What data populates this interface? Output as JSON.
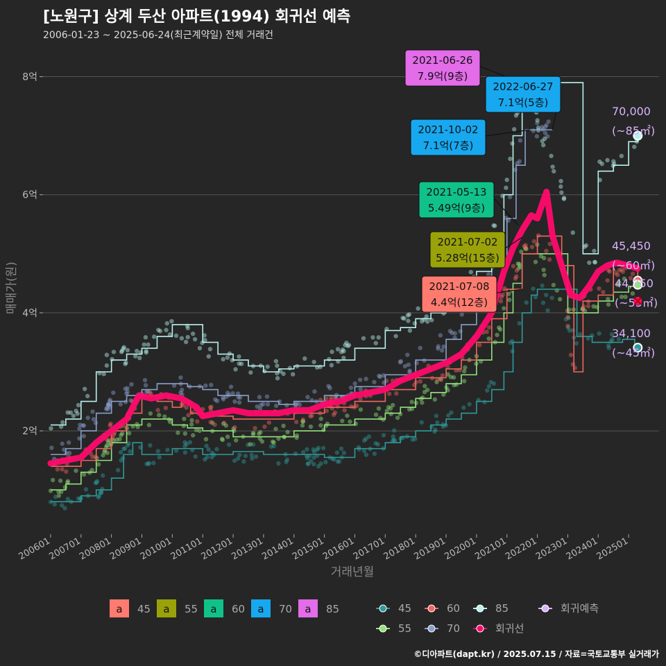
{
  "header": {
    "title": "[노원구] 상계 두산 아파트(1994) 회귀선 예측",
    "subtitle": "2006-01-23 ~ 2025-06-24(최근계약일) 전체 거래건",
    "credit": "©디아파트(dapt.kr) / 2025.07.15 / 자료=국토교통부 실거래가"
  },
  "colors": {
    "background": "#262626",
    "grid": "#555555",
    "s45": "#2f9a9a",
    "s55": "#93e27d",
    "s60": "#f1665f",
    "s70": "#8aa0cc",
    "s85": "#b8f2ee",
    "regression": "#ff0a6c",
    "forecast": "#d9b3ff"
  },
  "chart_data": {
    "type": "line",
    "title": "[노원구] 상계 두산 아파트(1994) 회귀선 예측",
    "xlabel": "거래년월",
    "ylabel": "매매가(원)",
    "ylim": [
      0.25,
      8.5
    ],
    "y_unit": "억",
    "y_ticks": [
      {
        "value": 2,
        "label": "2억"
      },
      {
        "value": 4,
        "label": "4억"
      },
      {
        "value": 6,
        "label": "6억"
      },
      {
        "value": 8,
        "label": "8억"
      }
    ],
    "xlim": [
      2005.75,
      2026.0
    ],
    "x_ticks": [
      {
        "value": 2006.0,
        "label": "200601"
      },
      {
        "value": 2007.0,
        "label": "200701"
      },
      {
        "value": 2008.0,
        "label": "200801"
      },
      {
        "value": 2009.0,
        "label": "200901"
      },
      {
        "value": 2010.0,
        "label": "201001"
      },
      {
        "value": 2011.0,
        "label": "201101"
      },
      {
        "value": 2012.0,
        "label": "201201"
      },
      {
        "value": 2013.0,
        "label": "201301"
      },
      {
        "value": 2014.0,
        "label": "201401"
      },
      {
        "value": 2015.0,
        "label": "201501"
      },
      {
        "value": 2016.0,
        "label": "201601"
      },
      {
        "value": 2017.0,
        "label": "201701"
      },
      {
        "value": 2018.0,
        "label": "201801"
      },
      {
        "value": 2019.0,
        "label": "201901"
      },
      {
        "value": 2020.0,
        "label": "202001"
      },
      {
        "value": 2021.0,
        "label": "202101"
      },
      {
        "value": 2022.0,
        "label": "202201"
      },
      {
        "value": 2023.0,
        "label": "202301"
      },
      {
        "value": 2024.0,
        "label": "202401"
      },
      {
        "value": 2025.0,
        "label": "202501"
      }
    ],
    "grid": true,
    "legend_position": "bottom",
    "series": [
      {
        "name": "45",
        "color": "#2f9a9a",
        "points": [
          [
            2006.0,
            0.8
          ],
          [
            2006.5,
            0.8
          ],
          [
            2007.0,
            0.9
          ],
          [
            2007.5,
            1.0
          ],
          [
            2008.0,
            1.2
          ],
          [
            2008.4,
            1.6
          ],
          [
            2008.7,
            1.8
          ],
          [
            2009.0,
            1.6
          ],
          [
            2009.5,
            1.6
          ],
          [
            2010.0,
            1.7
          ],
          [
            2010.5,
            1.7
          ],
          [
            2011.0,
            1.6
          ],
          [
            2011.5,
            1.6
          ],
          [
            2012.0,
            1.65
          ],
          [
            2013.0,
            1.6
          ],
          [
            2014.0,
            1.6
          ],
          [
            2015.0,
            1.55
          ],
          [
            2016.0,
            1.7
          ],
          [
            2017.0,
            1.8
          ],
          [
            2017.5,
            1.9
          ],
          [
            2018.0,
            2.0
          ],
          [
            2018.5,
            2.1
          ],
          [
            2019.0,
            2.2
          ],
          [
            2019.5,
            2.3
          ],
          [
            2020.0,
            2.5
          ],
          [
            2020.5,
            2.7
          ],
          [
            2020.9,
            3.0
          ],
          [
            2021.2,
            3.5
          ],
          [
            2021.5,
            4.0
          ],
          [
            2021.8,
            4.3
          ],
          [
            2022.0,
            4.4
          ],
          [
            2023.3,
            3.6
          ],
          [
            2023.8,
            3.5
          ],
          [
            2024.3,
            3.5
          ],
          [
            2024.8,
            3.55
          ],
          [
            2025.2,
            3.45
          ]
        ]
      },
      {
        "name": "55",
        "color": "#93e27d",
        "points": [
          [
            2006.0,
            1.0
          ],
          [
            2006.5,
            1.1
          ],
          [
            2007.0,
            1.3
          ],
          [
            2007.5,
            1.5
          ],
          [
            2008.0,
            1.8
          ],
          [
            2008.5,
            2.1
          ],
          [
            2009.0,
            2.2
          ],
          [
            2009.5,
            2.2
          ],
          [
            2010.0,
            2.1
          ],
          [
            2010.5,
            2.05
          ],
          [
            2011.0,
            2.0
          ],
          [
            2011.5,
            2.0
          ],
          [
            2012.0,
            1.9
          ],
          [
            2013.0,
            1.9
          ],
          [
            2014.0,
            2.0
          ],
          [
            2015.0,
            2.1
          ],
          [
            2016.0,
            2.2
          ],
          [
            2017.0,
            2.3
          ],
          [
            2017.5,
            2.4
          ],
          [
            2018.0,
            2.55
          ],
          [
            2018.5,
            2.65
          ],
          [
            2019.0,
            2.8
          ],
          [
            2019.5,
            2.95
          ],
          [
            2020.0,
            3.2
          ],
          [
            2020.5,
            3.5
          ],
          [
            2020.9,
            4.0
          ],
          [
            2021.2,
            4.5
          ],
          [
            2021.5,
            5.0
          ],
          [
            2022.0,
            5.0
          ],
          [
            2023.0,
            4.0
          ],
          [
            2023.5,
            4.0
          ],
          [
            2024.0,
            4.2
          ],
          [
            2024.5,
            4.35
          ],
          [
            2025.0,
            4.45
          ],
          [
            2025.3,
            4.45
          ]
        ]
      },
      {
        "name": "60",
        "color": "#f1665f",
        "points": [
          [
            2006.0,
            1.4
          ],
          [
            2006.5,
            1.4
          ],
          [
            2007.0,
            1.5
          ],
          [
            2007.5,
            1.7
          ],
          [
            2008.0,
            2.0
          ],
          [
            2008.5,
            2.3
          ],
          [
            2009.0,
            2.6
          ],
          [
            2009.5,
            2.5
          ],
          [
            2010.0,
            2.4
          ],
          [
            2010.3,
            2.5
          ],
          [
            2010.6,
            2.3
          ],
          [
            2011.0,
            2.25
          ],
          [
            2011.5,
            2.25
          ],
          [
            2012.0,
            2.2
          ],
          [
            2013.0,
            2.2
          ],
          [
            2014.0,
            2.3
          ],
          [
            2015.0,
            2.4
          ],
          [
            2016.0,
            2.5
          ],
          [
            2017.0,
            2.7
          ],
          [
            2018.0,
            2.9
          ],
          [
            2019.0,
            3.05
          ],
          [
            2019.5,
            3.2
          ],
          [
            2020.0,
            3.5
          ],
          [
            2020.5,
            3.9
          ],
          [
            2021.0,
            4.4
          ],
          [
            2021.5,
            5.0
          ],
          [
            2022.0,
            5.3
          ],
          [
            2022.8,
            4.8
          ],
          [
            2023.2,
            3.0
          ],
          [
            2023.5,
            4.2
          ],
          [
            2024.0,
            4.3
          ],
          [
            2024.5,
            4.8
          ],
          [
            2025.0,
            4.8
          ],
          [
            2025.3,
            4.545
          ]
        ]
      },
      {
        "name": "70",
        "color": "#8aa0cc",
        "points": [
          [
            2006.0,
            1.6
          ],
          [
            2006.5,
            1.7
          ],
          [
            2007.0,
            2.0
          ],
          [
            2007.5,
            2.3
          ],
          [
            2008.0,
            2.5
          ],
          [
            2008.5,
            2.6
          ],
          [
            2009.0,
            2.7
          ],
          [
            2009.5,
            2.8
          ],
          [
            2010.0,
            2.8
          ],
          [
            2010.5,
            2.75
          ],
          [
            2011.0,
            2.7
          ],
          [
            2011.5,
            2.6
          ],
          [
            2012.0,
            2.6
          ],
          [
            2012.5,
            2.5
          ],
          [
            2013.0,
            2.5
          ],
          [
            2013.5,
            2.45
          ],
          [
            2014.0,
            2.5
          ],
          [
            2015.0,
            2.6
          ],
          [
            2016.0,
            2.75
          ],
          [
            2017.0,
            2.95
          ],
          [
            2018.0,
            3.2
          ],
          [
            2019.0,
            3.55
          ],
          [
            2019.5,
            3.8
          ],
          [
            2020.0,
            4.2
          ],
          [
            2020.5,
            4.8
          ],
          [
            2021.0,
            5.6
          ],
          [
            2021.3,
            6.5
          ],
          [
            2021.6,
            7.1
          ],
          [
            2021.8,
            7.1
          ],
          [
            2022.5,
            7.1
          ]
        ]
      },
      {
        "name": "85",
        "color": "#b8f2ee",
        "points": [
          [
            2006.0,
            2.1
          ],
          [
            2006.5,
            2.2
          ],
          [
            2007.0,
            2.5
          ],
          [
            2007.5,
            3.0
          ],
          [
            2008.0,
            3.2
          ],
          [
            2008.5,
            3.3
          ],
          [
            2009.0,
            3.4
          ],
          [
            2009.5,
            3.6
          ],
          [
            2010.0,
            3.8
          ],
          [
            2011.0,
            3.5
          ],
          [
            2011.5,
            3.3
          ],
          [
            2012.0,
            3.2
          ],
          [
            2012.5,
            3.1
          ],
          [
            2013.0,
            3.0
          ],
          [
            2013.5,
            3.05
          ],
          [
            2014.0,
            3.1
          ],
          [
            2015.0,
            3.2
          ],
          [
            2016.0,
            3.4
          ],
          [
            2017.0,
            3.7
          ],
          [
            2017.5,
            3.75
          ],
          [
            2018.0,
            3.9
          ],
          [
            2018.5,
            4.0
          ],
          [
            2019.0,
            4.15
          ],
          [
            2019.5,
            4.35
          ],
          [
            2020.0,
            4.7
          ],
          [
            2020.5,
            5.2
          ],
          [
            2020.9,
            6.0
          ],
          [
            2021.2,
            7.0
          ],
          [
            2021.5,
            7.9
          ],
          [
            2021.6,
            7.9
          ],
          [
            2023.5,
            5.0
          ],
          [
            2023.9,
            5.0
          ],
          [
            2024.0,
            6.4
          ],
          [
            2024.5,
            6.5
          ],
          [
            2025.0,
            6.9
          ],
          [
            2025.3,
            7.0
          ]
        ]
      }
    ],
    "regression": {
      "name": "회귀선",
      "color": "#ff0a6c",
      "points": [
        [
          2006.0,
          1.45
        ],
        [
          2006.5,
          1.5
        ],
        [
          2007.0,
          1.55
        ],
        [
          2007.5,
          1.8
        ],
        [
          2008.0,
          2.0
        ],
        [
          2008.5,
          2.2
        ],
        [
          2008.9,
          2.6
        ],
        [
          2009.3,
          2.55
        ],
        [
          2009.8,
          2.6
        ],
        [
          2010.3,
          2.55
        ],
        [
          2010.8,
          2.4
        ],
        [
          2011.0,
          2.25
        ],
        [
          2011.5,
          2.3
        ],
        [
          2012.0,
          2.35
        ],
        [
          2012.5,
          2.3
        ],
        [
          2013.0,
          2.3
        ],
        [
          2013.5,
          2.3
        ],
        [
          2014.0,
          2.35
        ],
        [
          2014.5,
          2.35
        ],
        [
          2015.0,
          2.45
        ],
        [
          2015.5,
          2.5
        ],
        [
          2016.0,
          2.6
        ],
        [
          2016.5,
          2.65
        ],
        [
          2017.0,
          2.7
        ],
        [
          2017.5,
          2.85
        ],
        [
          2018.0,
          2.95
        ],
        [
          2018.5,
          3.05
        ],
        [
          2019.0,
          3.15
        ],
        [
          2019.5,
          3.3
        ],
        [
          2020.0,
          3.6
        ],
        [
          2020.5,
          4.0
        ],
        [
          2020.9,
          4.7
        ],
        [
          2021.2,
          5.1
        ],
        [
          2021.5,
          5.4
        ],
        [
          2021.8,
          5.65
        ],
        [
          2022.0,
          5.6
        ],
        [
          2022.3,
          6.05
        ],
        [
          2022.5,
          5.3
        ],
        [
          2022.8,
          4.8
        ],
        [
          2023.1,
          4.3
        ],
        [
          2023.4,
          4.25
        ],
        [
          2023.7,
          4.45
        ],
        [
          2024.0,
          4.7
        ],
        [
          2024.3,
          4.8
        ],
        [
          2024.6,
          4.85
        ],
        [
          2025.0,
          4.8
        ],
        [
          2025.3,
          4.75
        ]
      ]
    },
    "annotations": [
      {
        "date": "2021-06-26",
        "price": "7.9억(9층)",
        "area": "85",
        "color": "#e36ce9",
        "x": 2021.49,
        "y": 7.9
      },
      {
        "date": "2022-06-27",
        "price": "7.1억(5층)",
        "area": "70",
        "color": "#17a8f0",
        "x": 2022.49,
        "y": 7.1
      },
      {
        "date": "2021-10-02",
        "price": "7.1억(7층)",
        "area": "70",
        "color": "#17a8f0",
        "x": 2021.75,
        "y": 7.1
      },
      {
        "date": "2021-05-13",
        "price": "5.49억(9층)",
        "area": "60",
        "color": "#10c28a",
        "x": 2021.36,
        "y": 5.49
      },
      {
        "date": "2021-07-02",
        "price": "5.28억(15층)",
        "area": "55",
        "color": "#9aa20a",
        "x": 2021.5,
        "y": 5.28
      },
      {
        "date": "2021-07-08",
        "price": "4.4억(12층)",
        "area": "45",
        "color": "#ff7b70",
        "x": 2021.52,
        "y": 4.4
      }
    ],
    "forecasts": [
      {
        "value": "70,000",
        "area": "(~85㎡)",
        "x": 2025.3,
        "y": 7.0,
        "color": "#b8f2ee"
      },
      {
        "value": "45,450",
        "area": "(~60㎡)",
        "x": 2025.3,
        "y": 4.545,
        "color": "#f1665f"
      },
      {
        "value": "44,750",
        "area": "(~55㎡)",
        "x": 2025.3,
        "y": 4.475,
        "color": "#93e27d"
      },
      {
        "value": "34,100",
        "area": "(~45㎡)",
        "x": 2025.3,
        "y": 3.41,
        "color": "#2f9a9a"
      }
    ],
    "regression_forecast": {
      "x": 2025.3,
      "y": 4.2,
      "color": "#ff0a6c"
    }
  },
  "legend": {
    "max_labels": [
      {
        "glyph": "a",
        "label": "45",
        "color": "#ff7b70"
      },
      {
        "glyph": "a",
        "label": "55",
        "color": "#9aa20a"
      },
      {
        "glyph": "a",
        "label": "60",
        "color": "#10c28a"
      },
      {
        "glyph": "a",
        "label": "70",
        "color": "#17a8f0"
      },
      {
        "glyph": "a",
        "label": "85",
        "color": "#e36ce9"
      }
    ],
    "lines": [
      {
        "label": "45",
        "color": "#2f9a9a"
      },
      {
        "label": "60",
        "color": "#f1665f"
      },
      {
        "label": "85",
        "color": "#b8f2ee"
      },
      {
        "label": "회귀예측",
        "color": "#d9b3ff"
      },
      {
        "label": "55",
        "color": "#93e27d"
      },
      {
        "label": "70",
        "color": "#8aa0cc"
      },
      {
        "label": "회귀선",
        "color": "#ff0a6c"
      }
    ]
  }
}
